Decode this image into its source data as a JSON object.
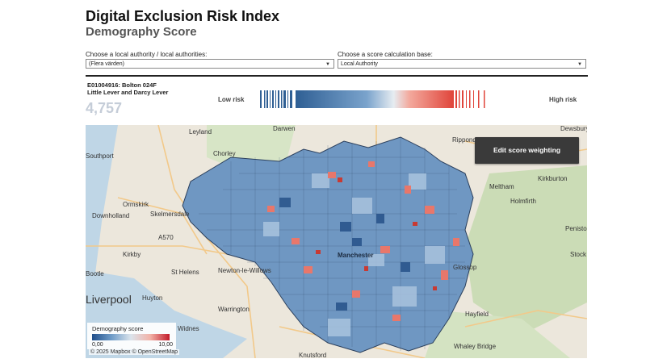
{
  "title": "Digital Exclusion Risk Index",
  "subtitle": "Demography Score",
  "filters": {
    "authority_label": "Choose a local authority / local authorities:",
    "authority_value": "(Flera värden)",
    "base_label": "Choose a score calculation base:",
    "base_value": "Local Authority"
  },
  "selected_area": {
    "code": "E01004916: Bolton 024F",
    "name": "Little Lever and Darcy Lever",
    "rank": "4,757"
  },
  "risk_scale": {
    "low_label": "Low risk",
    "high_label": "High risk"
  },
  "map": {
    "edit_button": "Edit score weighting",
    "legend_title": "Demography score",
    "legend_min": "0,00",
    "legend_max": "10,00",
    "attribution": "© 2025 Mapbox  © OpenStreetMap",
    "colors": {
      "low": "#1f4e8a",
      "mid": "#dbe4ec",
      "high": "#c21b2a"
    },
    "places": [
      {
        "id": "leyland",
        "name": "Leyland"
      },
      {
        "id": "darwen",
        "name": "Darwen"
      },
      {
        "id": "chorley",
        "name": "Chorley"
      },
      {
        "id": "southport",
        "name": "Southport"
      },
      {
        "id": "ormskirk",
        "name": "Ormskirk"
      },
      {
        "id": "skelmersdale",
        "name": "Skelmersdale"
      },
      {
        "id": "downholland",
        "name": "Downholland"
      },
      {
        "id": "a570",
        "name": "A570"
      },
      {
        "id": "kirkby",
        "name": "Kirkby"
      },
      {
        "id": "newton",
        "name": "Newton-le-Willows"
      },
      {
        "id": "sthelens",
        "name": "St Helens"
      },
      {
        "id": "bootle",
        "name": "Bootle"
      },
      {
        "id": "huyton",
        "name": "Huyton"
      },
      {
        "id": "liverpool",
        "name": "Liverpool"
      },
      {
        "id": "warrington",
        "name": "Warrington"
      },
      {
        "id": "widnes",
        "name": "Widnes"
      },
      {
        "id": "knutsford",
        "name": "Knutsford"
      },
      {
        "id": "dewsbury",
        "name": "Dewsbury"
      },
      {
        "id": "ripponden",
        "name": "Ripponden"
      },
      {
        "id": "kirkburton",
        "name": "Kirkburton"
      },
      {
        "id": "meltham",
        "name": "Meltham"
      },
      {
        "id": "holmfirth",
        "name": "Holmfirth"
      },
      {
        "id": "penistone",
        "name": "Peniston"
      },
      {
        "id": "glossop",
        "name": "Glossop"
      },
      {
        "id": "hayfield",
        "name": "Hayfield"
      },
      {
        "id": "whaley",
        "name": "Whaley Bridge"
      },
      {
        "id": "stock",
        "name": "Stock"
      },
      {
        "id": "manchester",
        "name": "Manchester"
      }
    ]
  }
}
